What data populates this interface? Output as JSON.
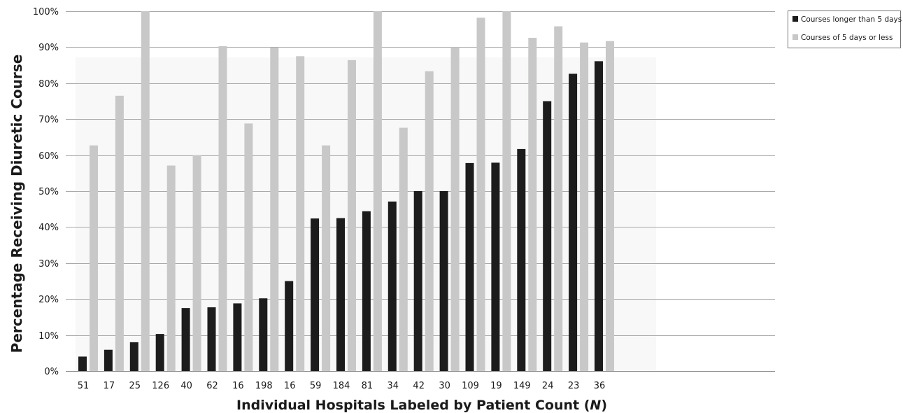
{
  "chart_data": {
    "type": "bar",
    "ylabel": "Percentage Receiving Diuretic Course",
    "xlabel_prefix": "Individual Hospitals Labeled by Patient Count (",
    "xlabel_var": "N",
    "xlabel_suffix": ")",
    "ylim": [
      0,
      100
    ],
    "yticks": [
      0,
      10,
      20,
      30,
      40,
      50,
      60,
      70,
      80,
      90,
      100
    ],
    "ytick_labels": [
      "0%",
      "10%",
      "20%",
      "30%",
      "40%",
      "50%",
      "60%",
      "70%",
      "80%",
      "90%",
      "100%"
    ],
    "categories": [
      "51",
      "17",
      "25",
      "126",
      "40",
      "62",
      "16",
      "198",
      "16",
      "59",
      "184",
      "81",
      "34",
      "42",
      "30",
      "109",
      "19",
      "149",
      "24",
      "23",
      "36"
    ],
    "series": [
      {
        "name": "Courses longer than 5 days",
        "color": "#1c1c1c",
        "values": [
          4,
          5.9,
          8,
          10.3,
          17.5,
          17.7,
          18.8,
          20.2,
          25,
          42.4,
          42.5,
          44.4,
          47.1,
          50,
          50,
          57.8,
          57.9,
          61.7,
          75,
          82.6,
          86.1
        ]
      },
      {
        "name": "Courses of 5 days or less",
        "color": "#c8c8c8",
        "values": [
          62.7,
          76.5,
          100,
          57.1,
          60,
          90.3,
          68.8,
          89.9,
          87.5,
          62.7,
          86.4,
          100,
          67.6,
          83.3,
          90,
          98.2,
          100,
          92.6,
          95.8,
          91.3,
          91.7
        ]
      }
    ],
    "grid": true,
    "legend_position": "top-right"
  }
}
